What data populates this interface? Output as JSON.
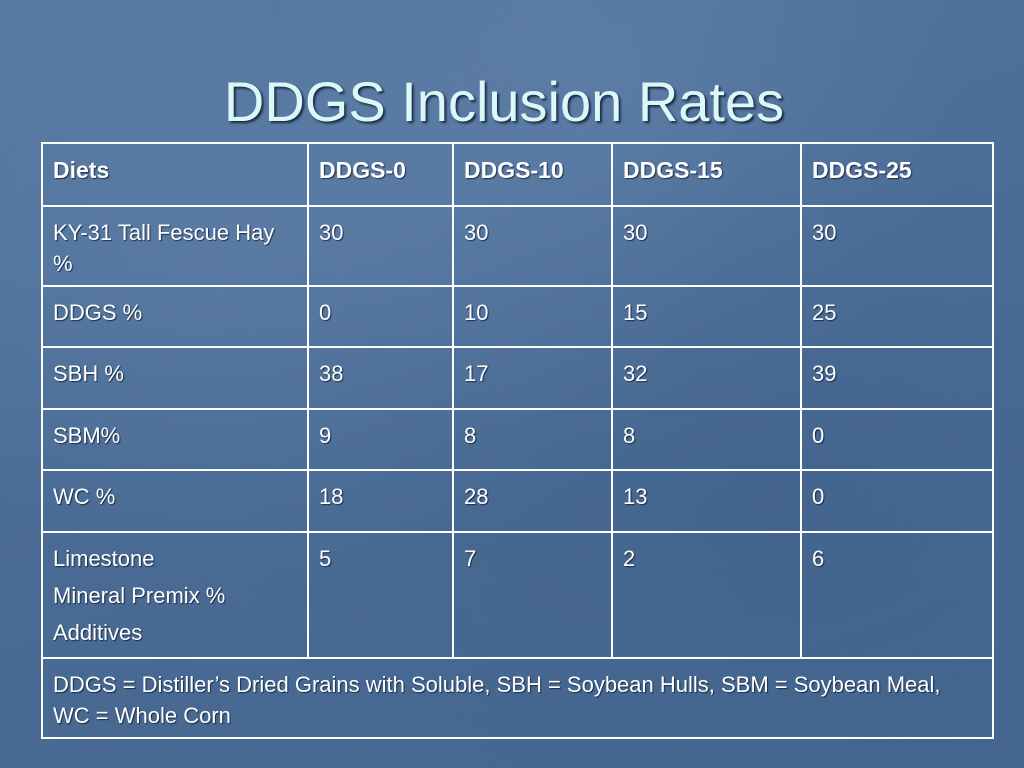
{
  "slide": {
    "title": "DDGS Inclusion Rates"
  },
  "table": {
    "headers": [
      "Diets",
      "DDGS-0",
      "DDGS-10",
      "DDGS-15",
      "DDGS-25"
    ],
    "rows": [
      {
        "label": "KY-31 Tall Fescue Hay %",
        "values": [
          "30",
          "30",
          "30",
          "30"
        ]
      },
      {
        "label": "DDGS %",
        "values": [
          "0",
          "10",
          "15",
          "25"
        ]
      },
      {
        "label": "SBH %",
        "values": [
          "38",
          "17",
          "32",
          "39"
        ]
      },
      {
        "label": "SBM%",
        "values": [
          "9",
          "8",
          "8",
          "0"
        ]
      },
      {
        "label": "WC %",
        "values": [
          "18",
          "28",
          "13",
          "0"
        ]
      },
      {
        "label_lines": [
          "Limestone",
          "Mineral Premix %",
          "Additives"
        ],
        "values": [
          "5",
          "7",
          "2",
          "6"
        ]
      }
    ],
    "footnote": "DDGS = Distiller’s Dried Grains with Soluble, SBH = Soybean Hulls, SBM = Soybean Meal, WC = Whole Corn"
  }
}
